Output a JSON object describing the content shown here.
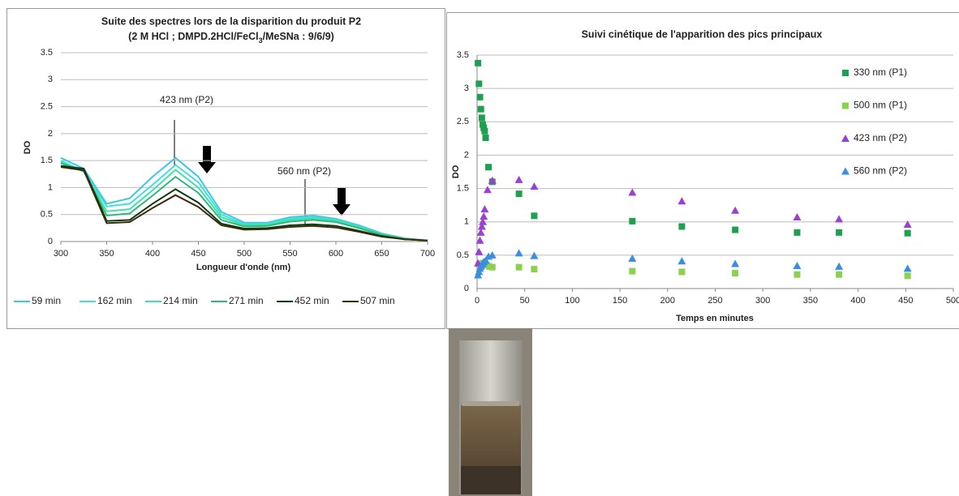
{
  "chart_data": [
    {
      "type": "line",
      "title": "Suite des spectres lors de la disparition du produit P2",
      "subtitle_parts": [
        "(2 M HCl ; DMPD.2HCl/FeCl",
        "3",
        "/MeSNa : 9/6/9)"
      ],
      "x_label": "Longueur d'onde (nm)",
      "y_label": "DO",
      "x": [
        300,
        325,
        350,
        375,
        400,
        425,
        450,
        475,
        500,
        525,
        550,
        575,
        600,
        625,
        650,
        675,
        700
      ],
      "series": [
        {
          "name": "59 min",
          "color": "#3ec8e8",
          "values": [
            1.55,
            1.35,
            0.7,
            0.8,
            1.2,
            1.55,
            1.2,
            0.55,
            0.35,
            0.35,
            0.45,
            0.48,
            0.42,
            0.3,
            0.15,
            0.06,
            0.02
          ]
        },
        {
          "name": "162 min",
          "color": "#40e0d8",
          "values": [
            1.5,
            1.3,
            0.65,
            0.7,
            1.05,
            1.42,
            1.1,
            0.5,
            0.32,
            0.33,
            0.42,
            0.45,
            0.4,
            0.28,
            0.14,
            0.05,
            0.02
          ]
        },
        {
          "name": "214 min",
          "color": "#40e0a8",
          "values": [
            1.47,
            1.3,
            0.56,
            0.6,
            0.95,
            1.33,
            1.0,
            0.45,
            0.3,
            0.31,
            0.4,
            0.43,
            0.38,
            0.27,
            0.13,
            0.05,
            0.02
          ]
        },
        {
          "name": "271 min",
          "color": "#30b878",
          "values": [
            1.45,
            1.3,
            0.48,
            0.52,
            0.85,
            1.2,
            0.9,
            0.4,
            0.28,
            0.29,
            0.37,
            0.4,
            0.36,
            0.25,
            0.12,
            0.05,
            0.02
          ]
        },
        {
          "name": "452 min",
          "color": "#0d3a14",
          "values": [
            1.4,
            1.35,
            0.38,
            0.4,
            0.7,
            0.97,
            0.72,
            0.33,
            0.24,
            0.25,
            0.3,
            0.32,
            0.29,
            0.2,
            0.1,
            0.04,
            0.02
          ]
        },
        {
          "name": "507 min",
          "color": "#3a2a08",
          "values": [
            1.38,
            1.32,
            0.34,
            0.36,
            0.62,
            0.86,
            0.64,
            0.3,
            0.22,
            0.23,
            0.27,
            0.29,
            0.26,
            0.18,
            0.09,
            0.04,
            0.02
          ]
        }
      ],
      "xlim": [
        300,
        700
      ],
      "xticks": [
        300,
        350,
        400,
        450,
        500,
        550,
        600,
        650,
        700
      ],
      "ylim": [
        0,
        3.5
      ],
      "yticks": [
        0,
        0.5,
        1,
        1.5,
        2,
        2.5,
        3,
        3.5
      ],
      "grid": true,
      "legend": "bottom",
      "annotations": [
        "423 nm (P2)",
        "560 nm (P2)"
      ]
    },
    {
      "type": "scatter",
      "title": "Suivi cinétique de l'apparition des pics principaux",
      "x_label": "Temps en minutes",
      "y_label": "DO",
      "series": [
        {
          "name": "330 nm (P1)",
          "color": "#1fa050",
          "marker": "square",
          "x": [
            1,
            2,
            3,
            4,
            5,
            6,
            7,
            8,
            9,
            12,
            16,
            44,
            60,
            163,
            215,
            271,
            336,
            380,
            452
          ],
          "y": [
            3.38,
            3.07,
            2.87,
            2.69,
            2.56,
            2.46,
            2.41,
            2.36,
            2.26,
            1.82,
            1.6,
            1.42,
            1.09,
            1.01,
            0.93,
            0.88,
            0.84,
            0.84,
            0.83
          ]
        },
        {
          "name": "500 nm (P1)",
          "color": "#8cd050",
          "marker": "square",
          "x": [
            2,
            4,
            6,
            8,
            10,
            13,
            16,
            44,
            60,
            163,
            215,
            271,
            336,
            380,
            452
          ],
          "y": [
            0.36,
            0.37,
            0.38,
            0.37,
            0.35,
            0.33,
            0.32,
            0.32,
            0.29,
            0.26,
            0.25,
            0.23,
            0.21,
            0.21,
            0.19
          ]
        },
        {
          "name": "423 nm (P2)",
          "color": "#9b40d0",
          "marker": "triangle",
          "x": [
            1,
            2,
            3,
            4,
            5,
            6,
            7,
            8,
            11,
            16,
            44,
            60,
            163,
            215,
            271,
            336,
            380,
            452
          ],
          "y": [
            0.38,
            0.55,
            0.72,
            0.84,
            0.93,
            1.0,
            1.08,
            1.19,
            1.48,
            1.62,
            1.63,
            1.53,
            1.44,
            1.31,
            1.17,
            1.07,
            1.04,
            0.96
          ]
        },
        {
          "name": "560 nm (P2)",
          "color": "#3a8ee0",
          "marker": "triangle",
          "x": [
            1,
            2,
            3,
            4,
            5,
            6,
            7,
            9,
            12,
            16,
            44,
            60,
            163,
            215,
            271,
            336,
            380,
            452
          ],
          "y": [
            0.2,
            0.25,
            0.3,
            0.33,
            0.36,
            0.38,
            0.4,
            0.42,
            0.48,
            0.5,
            0.53,
            0.49,
            0.45,
            0.41,
            0.37,
            0.34,
            0.33,
            0.3
          ]
        }
      ],
      "xlim": [
        0,
        500
      ],
      "xticks": [
        0,
        50,
        100,
        150,
        200,
        250,
        300,
        350,
        400,
        450,
        500
      ],
      "ylim": [
        0,
        3.5
      ],
      "yticks": [
        0,
        0.5,
        1,
        1.5,
        2,
        2.5,
        3,
        3.5
      ],
      "grid": true,
      "legend": "right"
    }
  ]
}
